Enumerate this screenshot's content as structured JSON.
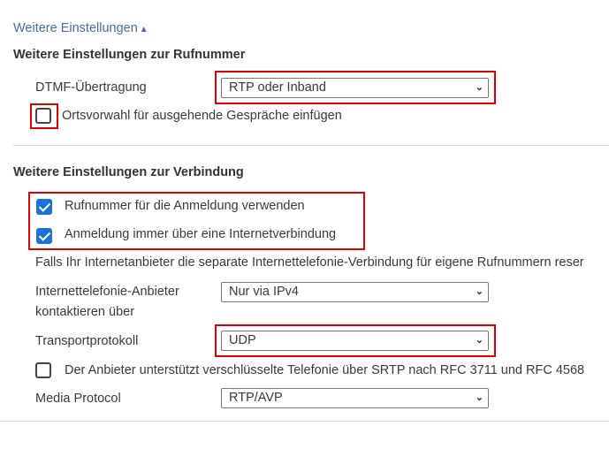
{
  "toggle": {
    "label": "Weitere Einstellungen",
    "icon": "triangle-up-icon"
  },
  "section1": {
    "title": "Weitere Einstellungen zur Rufnummer",
    "dtmf": {
      "label": "DTMF-Übertragung",
      "value": "RTP oder Inband"
    },
    "ortsvorwahl": {
      "label": "Ortsvorwahl für ausgehende Gespräche einfügen",
      "checked": false
    }
  },
  "section2": {
    "title": "Weitere Einstellungen zur Verbindung",
    "rufnummer_anmeldung": {
      "label": "Rufnummer für die Anmeldung verwenden",
      "checked": true
    },
    "anmeldung_internet": {
      "label": "Anmeldung immer über eine Internetverbindung",
      "checked": true
    },
    "info": "Falls Ihr Internetanbieter die separate Internettelefonie-Verbindung für eigene Rufnummern reser",
    "anbieter": {
      "label_line1": "Internettelefonie-Anbieter",
      "label_line2": "kontaktieren über",
      "value": "Nur via IPv4"
    },
    "transport": {
      "label": "Transportprotokoll",
      "value": "UDP"
    },
    "srtp": {
      "label": "Der Anbieter unterstützt verschlüsselte Telefonie über SRTP nach RFC 3711 und RFC 4568",
      "checked": false
    },
    "media": {
      "label": "Media Protocol",
      "value": "RTP/AVP"
    }
  },
  "colors": {
    "highlight": "#e00000",
    "checkbox_checked": "#1a73d9",
    "link": "#4a6aa8"
  }
}
